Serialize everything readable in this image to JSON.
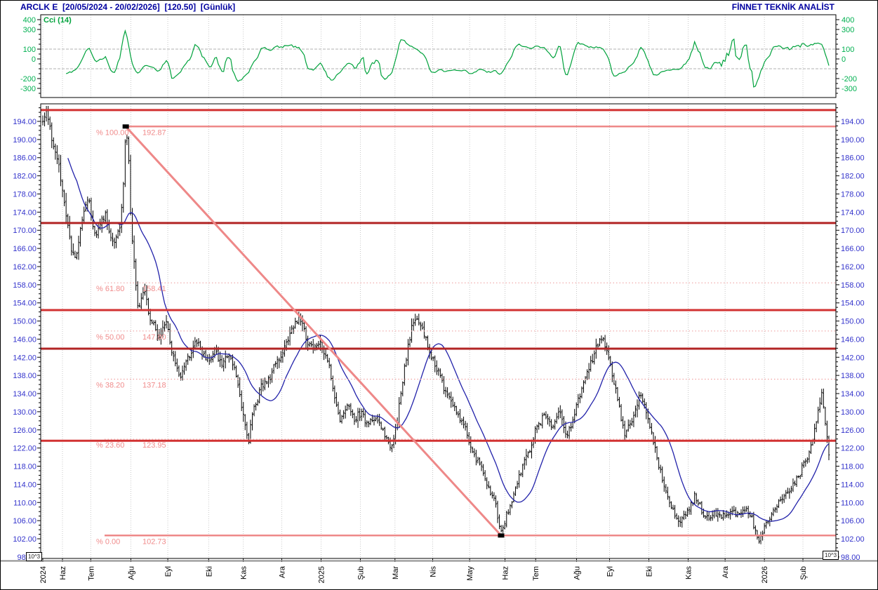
{
  "header": {
    "title_left": "ARCLK E  [20/05/2024 - 20/02/2026]  [120.50]  [Günlük]",
    "title_right": "FİNNET TEKNİK ANALİST"
  },
  "chart_data": [
    {
      "type": "line",
      "title": "Cci (14)",
      "ylabel": "CCI",
      "ylim": [
        -390,
        450
      ],
      "yticks": [
        400,
        300,
        100,
        0,
        -200,
        -300
      ],
      "guides": [
        100,
        -100
      ],
      "line_color": "#00a23c",
      "label_color": "#00b050",
      "series": [
        {
          "name": "CCI(14)",
          "period": 14,
          "derived": "computed from daily price bars"
        }
      ],
      "grid": "vertical-dotted-months"
    },
    {
      "type": "ohlc-bar",
      "title": "ARCLK E daily price",
      "last_price": 120.5,
      "bars": 440,
      "ylim": [
        97.9,
        197.9
      ],
      "yticks": [
        194,
        190,
        186,
        182,
        178,
        174,
        170,
        166,
        162,
        158,
        154,
        150,
        146,
        142,
        138,
        134,
        130,
        126,
        122,
        118,
        114,
        110,
        106,
        102,
        98
      ],
      "axis_color": "#3434cc",
      "scale_badge": "10^3",
      "months": [
        {
          "label": "2024",
          "f": 0.0
        },
        {
          "label": "Haz",
          "f": 0.025
        },
        {
          "label": "Tem",
          "f": 0.061
        },
        {
          "label": "Ağu",
          "f": 0.112
        },
        {
          "label": "Eyl",
          "f": 0.159
        },
        {
          "label": "Eki",
          "f": 0.211
        },
        {
          "label": "Kas",
          "f": 0.255
        },
        {
          "label": "Ara",
          "f": 0.304
        },
        {
          "label": "2025",
          "f": 0.354
        },
        {
          "label": "Şub",
          "f": 0.404
        },
        {
          "label": "Mar",
          "f": 0.448
        },
        {
          "label": "Nis",
          "f": 0.496
        },
        {
          "label": "May",
          "f": 0.543
        },
        {
          "label": "Haz",
          "f": 0.588
        },
        {
          "label": "Tem",
          "f": 0.627
        },
        {
          "label": "Ağu",
          "f": 0.679
        },
        {
          "label": "Eyl",
          "f": 0.721
        },
        {
          "label": "Eki",
          "f": 0.771
        },
        {
          "label": "Kas",
          "f": 0.821
        },
        {
          "label": "Ara",
          "f": 0.868
        },
        {
          "label": "2026",
          "f": 0.918
        },
        {
          "label": "Şub",
          "f": 0.967
        }
      ],
      "price_path": [
        [
          0.0,
          194.0
        ],
        [
          0.004,
          195.8
        ],
        [
          0.012,
          190.0
        ],
        [
          0.02,
          184.0
        ],
        [
          0.028,
          176.0
        ],
        [
          0.036,
          166.0
        ],
        [
          0.042,
          163.5
        ],
        [
          0.049,
          172.0
        ],
        [
          0.058,
          177.5
        ],
        [
          0.067,
          168.0
        ],
        [
          0.075,
          172.0
        ],
        [
          0.08,
          174.0
        ],
        [
          0.089,
          167.0
        ],
        [
          0.098,
          170.0
        ],
        [
          0.103,
          181.0
        ],
        [
          0.1055,
          192.4
        ],
        [
          0.109,
          186.0
        ],
        [
          0.112,
          172.0
        ],
        [
          0.117,
          162.0
        ],
        [
          0.121,
          152.5
        ],
        [
          0.129,
          157.0
        ],
        [
          0.138,
          150.0
        ],
        [
          0.147,
          146.0
        ],
        [
          0.156,
          150.0
        ],
        [
          0.165,
          143.0
        ],
        [
          0.174,
          137.5
        ],
        [
          0.183,
          142.0
        ],
        [
          0.196,
          145.0
        ],
        [
          0.21,
          141.0
        ],
        [
          0.219,
          144.0
        ],
        [
          0.228,
          140.0
        ],
        [
          0.237,
          143.0
        ],
        [
          0.246,
          138.0
        ],
        [
          0.254,
          130.0
        ],
        [
          0.262,
          123.8
        ],
        [
          0.268,
          131.0
        ],
        [
          0.277,
          135.0
        ],
        [
          0.29,
          138.0
        ],
        [
          0.304,
          143.0
        ],
        [
          0.317,
          148.0
        ],
        [
          0.326,
          151.3
        ],
        [
          0.335,
          146.0
        ],
        [
          0.344,
          143.5
        ],
        [
          0.353,
          146.0
        ],
        [
          0.362,
          142.0
        ],
        [
          0.371,
          133.0
        ],
        [
          0.379,
          128.0
        ],
        [
          0.388,
          131.0
        ],
        [
          0.397,
          128.5
        ],
        [
          0.406,
          130.0
        ],
        [
          0.415,
          127.0
        ],
        [
          0.424,
          129.0
        ],
        [
          0.433,
          125.5
        ],
        [
          0.442,
          122.0
        ],
        [
          0.451,
          128.0
        ],
        [
          0.46,
          140.0
        ],
        [
          0.469,
          148.0
        ],
        [
          0.476,
          151.0
        ],
        [
          0.487,
          146.0
        ],
        [
          0.496,
          142.0
        ],
        [
          0.509,
          136.0
        ],
        [
          0.522,
          131.0
        ],
        [
          0.536,
          127.0
        ],
        [
          0.545,
          122.0
        ],
        [
          0.558,
          117.0
        ],
        [
          0.567,
          113.0
        ],
        [
          0.576,
          109.0
        ],
        [
          0.583,
          103.8
        ],
        [
          0.594,
          109.0
        ],
        [
          0.607,
          116.0
        ],
        [
          0.62,
          122.0
        ],
        [
          0.629,
          127.0
        ],
        [
          0.638,
          130.0
        ],
        [
          0.647,
          126.0
        ],
        [
          0.656,
          130.0
        ],
        [
          0.665,
          124.5
        ],
        [
          0.674,
          128.0
        ],
        [
          0.683,
          134.0
        ],
        [
          0.692,
          138.0
        ],
        [
          0.704,
          144.0
        ],
        [
          0.712,
          146.3
        ],
        [
          0.723,
          140.0
        ],
        [
          0.732,
          132.0
        ],
        [
          0.741,
          124.5
        ],
        [
          0.75,
          128.0
        ],
        [
          0.759,
          133.5
        ],
        [
          0.766,
          131.0
        ],
        [
          0.775,
          125.0
        ],
        [
          0.784,
          118.0
        ],
        [
          0.793,
          112.0
        ],
        [
          0.802,
          108.0
        ],
        [
          0.813,
          105.8
        ],
        [
          0.821,
          109.0
        ],
        [
          0.83,
          111.5
        ],
        [
          0.839,
          107.5
        ],
        [
          0.848,
          106.5
        ],
        [
          0.857,
          108.0
        ],
        [
          0.866,
          107.0
        ],
        [
          0.875,
          108.5
        ],
        [
          0.884,
          107.0
        ],
        [
          0.893,
          109.0
        ],
        [
          0.902,
          106.0
        ],
        [
          0.912,
          102.0
        ],
        [
          0.92,
          105.0
        ],
        [
          0.929,
          108.0
        ],
        [
          0.938,
          110.0
        ],
        [
          0.946,
          112.0
        ],
        [
          0.955,
          114.0
        ],
        [
          0.964,
          117.0
        ],
        [
          0.973,
          120.0
        ],
        [
          0.98,
          124.0
        ],
        [
          0.987,
          130.0
        ],
        [
          0.991,
          134.5
        ],
        [
          0.996,
          127.0
        ],
        [
          1.0,
          120.5
        ]
      ],
      "ma": {
        "period": 20,
        "color": "#2222aa"
      },
      "resistance_lines": [
        {
          "price": 196.5,
          "color": "#d23232"
        },
        {
          "price": 171.6,
          "color": "#b22424"
        },
        {
          "price": 152.4,
          "color": "#d23232"
        },
        {
          "price": 143.9,
          "color": "#b22424"
        },
        {
          "price": 123.6,
          "color": "#d23232"
        }
      ],
      "fibonacci": {
        "solid_color": "#ee8888",
        "dotted_color": "#f0a4a4",
        "label_color": "#f08c8c",
        "levels": [
          {
            "pct_label": "% 100.00",
            "value_label": "192.87",
            "price": 192.87,
            "style": "solid"
          },
          {
            "pct_label": "% 61.80",
            "value_label": "158.41",
            "price": 158.41,
            "style": "dotted"
          },
          {
            "pct_label": "% 50.00",
            "value_label": "147.80",
            "price": 147.8,
            "style": "dotted"
          },
          {
            "pct_label": "% 38.20",
            "value_label": "137.18",
            "price": 137.18,
            "style": "dotted"
          },
          {
            "pct_label": "% 23.60",
            "value_label": "123.95",
            "price": 123.95,
            "style": "dotted"
          },
          {
            "pct_label": "% 0.00",
            "value_label": "102.73",
            "price": 102.73,
            "style": "solid"
          }
        ],
        "trend_line": {
          "from_f": 0.1055,
          "from_price": 192.87,
          "to_f": 0.583,
          "to_price": 102.73
        }
      }
    }
  ]
}
